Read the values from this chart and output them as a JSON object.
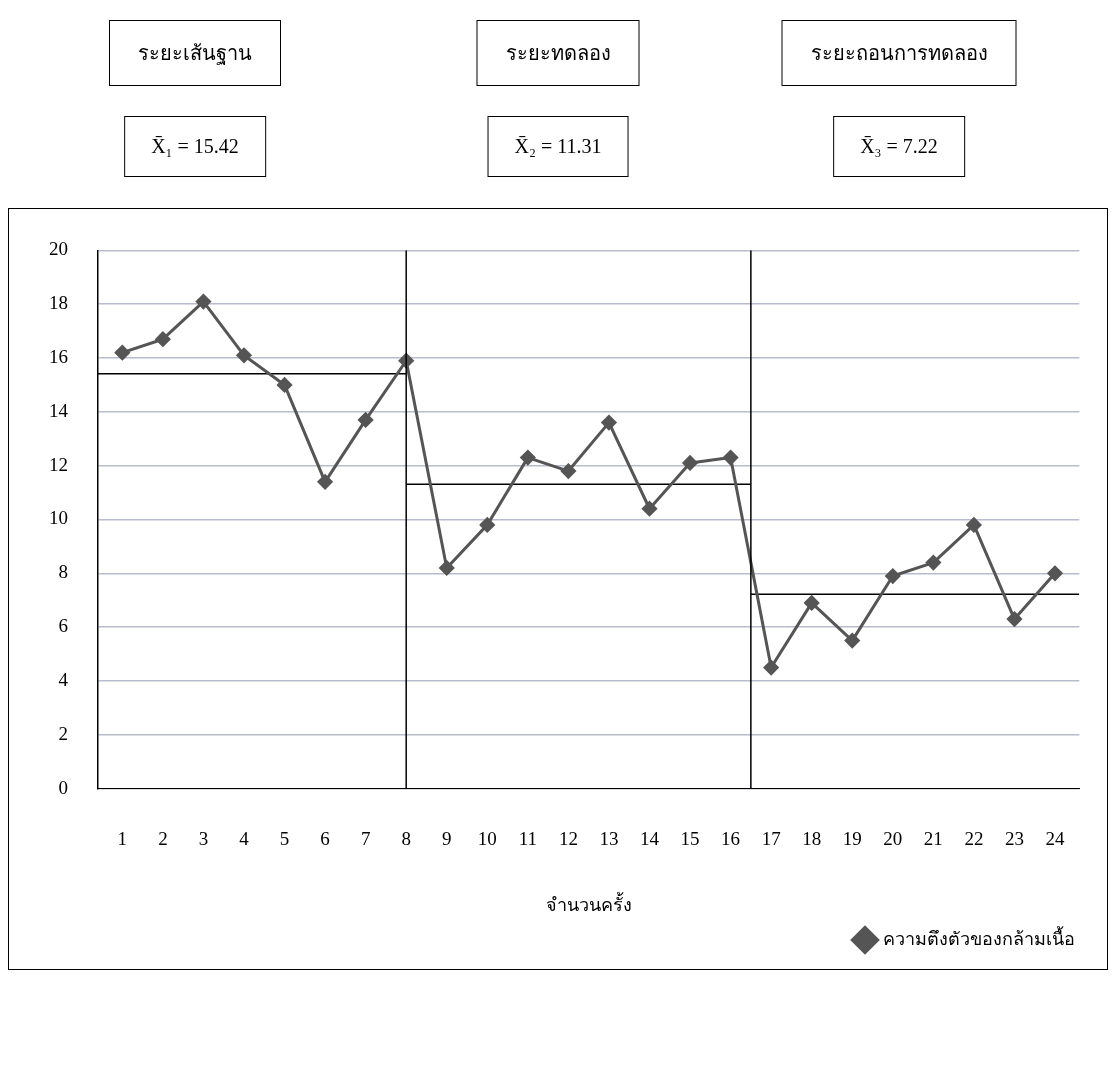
{
  "chart_data": {
    "type": "line",
    "x": [
      1,
      2,
      3,
      4,
      5,
      6,
      7,
      8,
      9,
      10,
      11,
      12,
      13,
      14,
      15,
      16,
      17,
      18,
      19,
      20,
      21,
      22,
      23,
      24
    ],
    "xlim": [
      0.4,
      24.6
    ],
    "xticks": [
      1,
      2,
      3,
      4,
      5,
      6,
      7,
      8,
      9,
      10,
      11,
      12,
      13,
      14,
      15,
      16,
      17,
      18,
      19,
      20,
      21,
      22,
      23,
      24
    ],
    "ylim": [
      0,
      20
    ],
    "yticks": [
      0,
      2,
      4,
      6,
      8,
      10,
      12,
      14,
      16,
      18,
      20
    ],
    "xlabel": "จำนวนครั้ง",
    "grid": "y",
    "legend": "bottom right",
    "marker": "diamond",
    "line_style": "solid",
    "series": [
      {
        "name": "ความตึงตัวของกล้ามเนื้อ",
        "color": "#555555",
        "values": [
          16.2,
          16.7,
          18.1,
          16.1,
          15.0,
          11.4,
          13.7,
          15.9,
          8.2,
          9.8,
          12.3,
          11.8,
          13.6,
          10.4,
          12.1,
          12.3,
          4.5,
          6.9,
          5.5,
          7.9,
          8.4,
          9.8,
          6.3,
          8.0
        ]
      },
      {
        "marker": "none",
        "color": "#000000",
        "x": [
          0.4,
          8
        ],
        "values": [
          15.42,
          15.42
        ]
      },
      {
        "marker": "none",
        "color": "#000000",
        "x": [
          8,
          16.5
        ],
        "values": [
          11.31,
          11.31
        ]
      },
      {
        "marker": "none",
        "color": "#000000",
        "x": [
          16.5,
          24.6
        ],
        "values": [
          7.22,
          7.22
        ]
      }
    ],
    "ref_lines": [
      {
        "axis": "x",
        "value": 8,
        "color": "#000000"
      },
      {
        "axis": "x",
        "value": 16.5,
        "color": "#000000"
      }
    ],
    "annotations": [
      "ระยะเส้นฐาน",
      "ระยะทดลอง",
      "ระยะถอนการทดลอง",
      "X̄₁ = 15.42",
      "X̄₂ = 11.31",
      "X̄₃ = 7.22"
    ]
  }
}
